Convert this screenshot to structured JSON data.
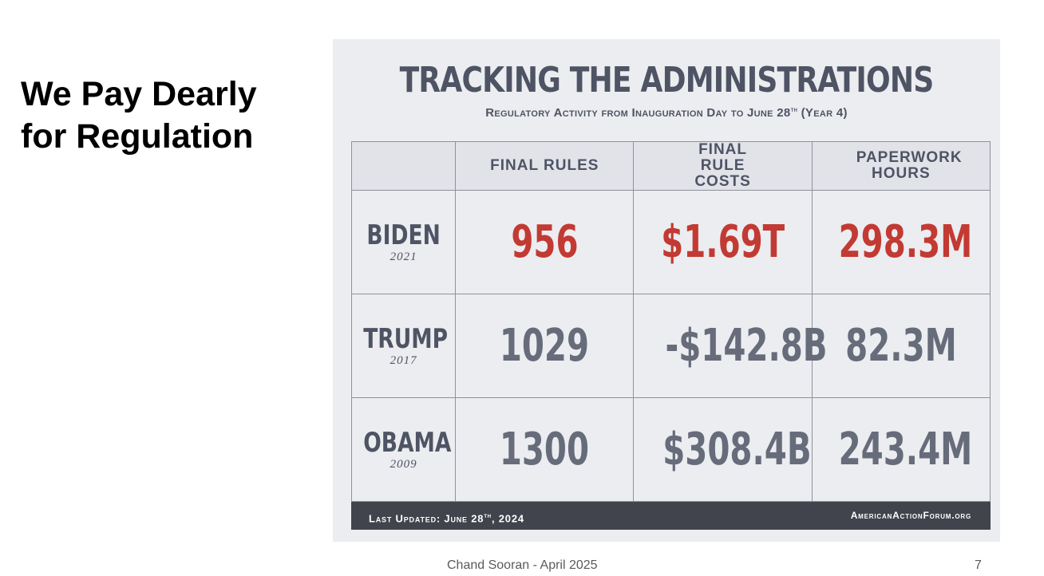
{
  "slide": {
    "title_line1": "We Pay Dearly",
    "title_line2": "for Regulation",
    "footer_author": "Chand Sooran - April 2025",
    "page_number": "7"
  },
  "infographic": {
    "title": "TRACKING THE ADMINISTRATIONS",
    "subtitle": "Regulatory Activity from Inauguration Day to June 28",
    "subtitle_suffix": "th",
    "subtitle_end": " (Year 4)",
    "columns": [
      "FINAL RULES",
      "FINAL RULE COSTS",
      "PAPERWORK HOURS"
    ],
    "rows": [
      {
        "name": "BIDEN",
        "year": "2021",
        "final_rules": "956",
        "final_rule_costs": "$1.69T",
        "paperwork_hours": "298.3M"
      },
      {
        "name": "TRUMP",
        "year": "2017",
        "final_rules": "1029",
        "final_rule_costs": "-$142.8B",
        "paperwork_hours": "82.3M"
      },
      {
        "name": "OBAMA",
        "year": "2009",
        "final_rules": "1300",
        "final_rule_costs": "$308.4B",
        "paperwork_hours": "243.4M"
      }
    ],
    "footer_left": "Last Updated: June 28",
    "footer_left_suffix": "th",
    "footer_left_end": ", 2024",
    "footer_right": "AmericanActionForum.org",
    "colors": {
      "background": "#ecedf0",
      "text": "#4e5464",
      "highlight": "#c23a33",
      "footer_band": "#41444d"
    }
  }
}
